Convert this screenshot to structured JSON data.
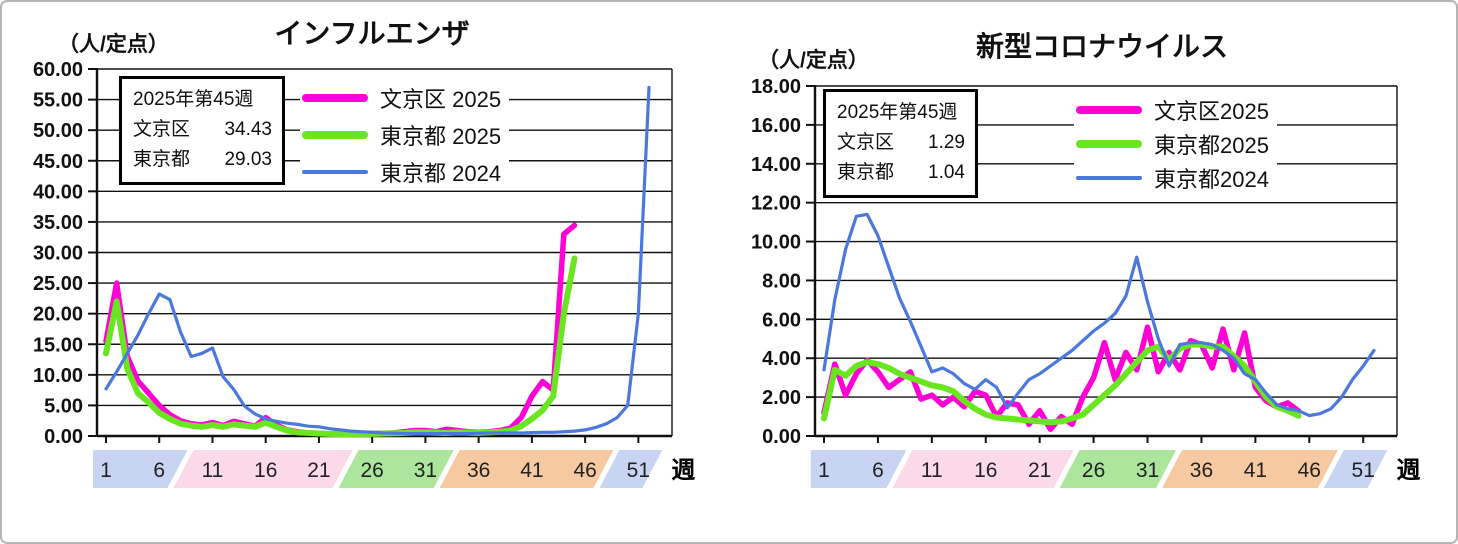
{
  "chart_data": [
    {
      "type": "line",
      "title": "インフルエンザ",
      "unit_label": "（人/定点）",
      "x_label": "週",
      "x_ticks": [
        1,
        6,
        11,
        16,
        21,
        26,
        31,
        36,
        41,
        46,
        51
      ],
      "ylim": [
        0,
        60
      ],
      "y_step": 5,
      "grid": true,
      "legend_position": "top-inside",
      "info_box": {
        "title": "2025年第45週",
        "rows": [
          {
            "label": "文京区",
            "value": "34.43"
          },
          {
            "label": "東京都",
            "value": "29.03"
          }
        ]
      },
      "x_bands": [
        {
          "from": -0.5,
          "to": 8,
          "color": "#C8D5F2"
        },
        {
          "from": 8,
          "to": 23.5,
          "color": "#FBD9E8"
        },
        {
          "from": 23.5,
          "to": 33,
          "color": "#ABE69C"
        },
        {
          "from": 33,
          "to": 48,
          "color": "#F7C9A0"
        },
        {
          "from": 48,
          "to": 52.6,
          "color": "#C8D5F2"
        }
      ],
      "series": [
        {
          "id": "bunkyo-2025",
          "label": "文京区 2025",
          "color": "#FF00D5",
          "width": 5.5,
          "start_week": 1,
          "values": [
            15.5,
            25.0,
            13.0,
            9.0,
            7.0,
            5.0,
            3.5,
            2.5,
            2.0,
            1.8,
            2.2,
            1.7,
            2.4,
            2.0,
            1.6,
            3.0,
            1.8,
            1.0,
            0.7,
            0.5,
            0.4,
            0.35,
            0.3,
            0.3,
            0.35,
            0.4,
            0.45,
            0.5,
            0.7,
            0.9,
            0.9,
            0.7,
            1.1,
            0.9,
            0.7,
            0.6,
            0.7,
            0.9,
            1.3,
            3.0,
            6.5,
            8.9,
            7.5,
            33.0,
            34.43
          ]
        },
        {
          "id": "tokyo-2025",
          "label": "東京都 2025",
          "color": "#69E620",
          "width": 6,
          "start_week": 1,
          "values": [
            13.5,
            22.0,
            11.0,
            7.0,
            5.5,
            3.8,
            2.8,
            2.0,
            1.7,
            1.5,
            1.8,
            1.5,
            1.9,
            1.7,
            1.5,
            2.2,
            1.5,
            0.9,
            0.6,
            0.5,
            0.4,
            0.35,
            0.3,
            0.3,
            0.3,
            0.35,
            0.4,
            0.45,
            0.5,
            0.6,
            0.6,
            0.55,
            0.5,
            0.6,
            0.55,
            0.5,
            0.6,
            0.7,
            0.9,
            1.6,
            2.8,
            4.2,
            6.5,
            20.0,
            29.03
          ]
        },
        {
          "id": "tokyo-2024",
          "label": "東京都 2024",
          "color": "#4A78DC",
          "width": 3.2,
          "start_week": 1,
          "values": [
            7.7,
            10.5,
            13.5,
            16.5,
            20.0,
            23.2,
            22.3,
            17.0,
            13.0,
            13.5,
            14.4,
            9.7,
            7.6,
            4.9,
            3.6,
            2.8,
            2.4,
            2.1,
            1.9,
            1.6,
            1.5,
            1.2,
            1.0,
            0.8,
            0.7,
            0.6,
            0.5,
            0.45,
            0.4,
            0.4,
            0.4,
            0.4,
            0.4,
            0.4,
            0.4,
            0.45,
            0.5,
            0.5,
            0.5,
            0.5,
            0.55,
            0.6,
            0.6,
            0.7,
            0.8,
            1.0,
            1.4,
            2.0,
            3.0,
            5.0,
            20.0,
            57.0
          ]
        }
      ]
    },
    {
      "type": "line",
      "title": "新型コロナウイルス",
      "unit_label": "（人/定点）",
      "x_label": "週",
      "x_ticks": [
        1,
        6,
        11,
        16,
        21,
        26,
        31,
        36,
        41,
        46,
        51
      ],
      "ylim": [
        0,
        18
      ],
      "y_step": 2,
      "grid": true,
      "legend_position": "top-inside",
      "info_box": {
        "title": "2025年第45週",
        "rows": [
          {
            "label": "文京区",
            "value": "1.29"
          },
          {
            "label": "東京都",
            "value": "1.04"
          }
        ]
      },
      "x_bands": [
        {
          "from": -0.5,
          "to": 8,
          "color": "#C8D5F2"
        },
        {
          "from": 8,
          "to": 23.5,
          "color": "#FBD9E8"
        },
        {
          "from": 23.5,
          "to": 33,
          "color": "#ABE69C"
        },
        {
          "from": 33,
          "to": 48,
          "color": "#F7C9A0"
        },
        {
          "from": 48,
          "to": 52.6,
          "color": "#C8D5F2"
        }
      ],
      "series": [
        {
          "id": "bunkyo-2025",
          "label": "文京区2025",
          "color": "#FF00D5",
          "width": 5.5,
          "start_week": 1,
          "values": [
            1.2,
            3.7,
            2.1,
            3.2,
            3.9,
            3.3,
            2.5,
            2.9,
            3.3,
            1.9,
            2.1,
            1.6,
            2.0,
            1.5,
            2.3,
            2.1,
            1.0,
            1.7,
            1.6,
            0.6,
            1.3,
            0.35,
            1.0,
            0.6,
            2.0,
            3.0,
            4.8,
            2.9,
            4.3,
            3.4,
            5.6,
            3.3,
            4.3,
            3.4,
            4.9,
            4.7,
            3.5,
            5.5,
            3.4,
            5.3,
            2.5,
            1.8,
            1.5,
            1.7,
            1.29
          ]
        },
        {
          "id": "tokyo-2025",
          "label": "東京都2025",
          "color": "#69E620",
          "width": 6,
          "start_week": 1,
          "values": [
            0.9,
            3.4,
            3.1,
            3.6,
            3.8,
            3.7,
            3.5,
            3.2,
            3.0,
            2.8,
            2.6,
            2.5,
            2.3,
            1.8,
            1.4,
            1.1,
            0.95,
            0.9,
            0.85,
            0.8,
            0.75,
            0.7,
            0.75,
            0.9,
            1.1,
            1.6,
            2.1,
            2.6,
            3.2,
            3.8,
            4.4,
            4.6,
            3.9,
            4.5,
            4.7,
            4.7,
            4.6,
            4.6,
            4.1,
            3.6,
            2.8,
            2.0,
            1.5,
            1.3,
            1.04
          ]
        },
        {
          "id": "tokyo-2024",
          "label": "東京都2024",
          "color": "#4A78DC",
          "width": 3.2,
          "start_week": 1,
          "values": [
            3.4,
            7.0,
            9.6,
            11.3,
            11.4,
            10.3,
            8.7,
            7.1,
            5.9,
            4.6,
            3.3,
            3.5,
            3.2,
            2.7,
            2.4,
            2.9,
            2.5,
            1.45,
            2.2,
            2.9,
            3.2,
            3.6,
            4.0,
            4.4,
            4.9,
            5.4,
            5.8,
            6.3,
            7.2,
            9.2,
            6.9,
            5.0,
            3.6,
            4.7,
            4.8,
            4.8,
            4.7,
            4.4,
            4.0,
            3.2,
            2.9,
            2.2,
            1.6,
            1.4,
            1.3,
            1.05,
            1.15,
            1.4,
            2.0,
            2.9,
            3.6,
            4.4
          ]
        }
      ]
    }
  ]
}
